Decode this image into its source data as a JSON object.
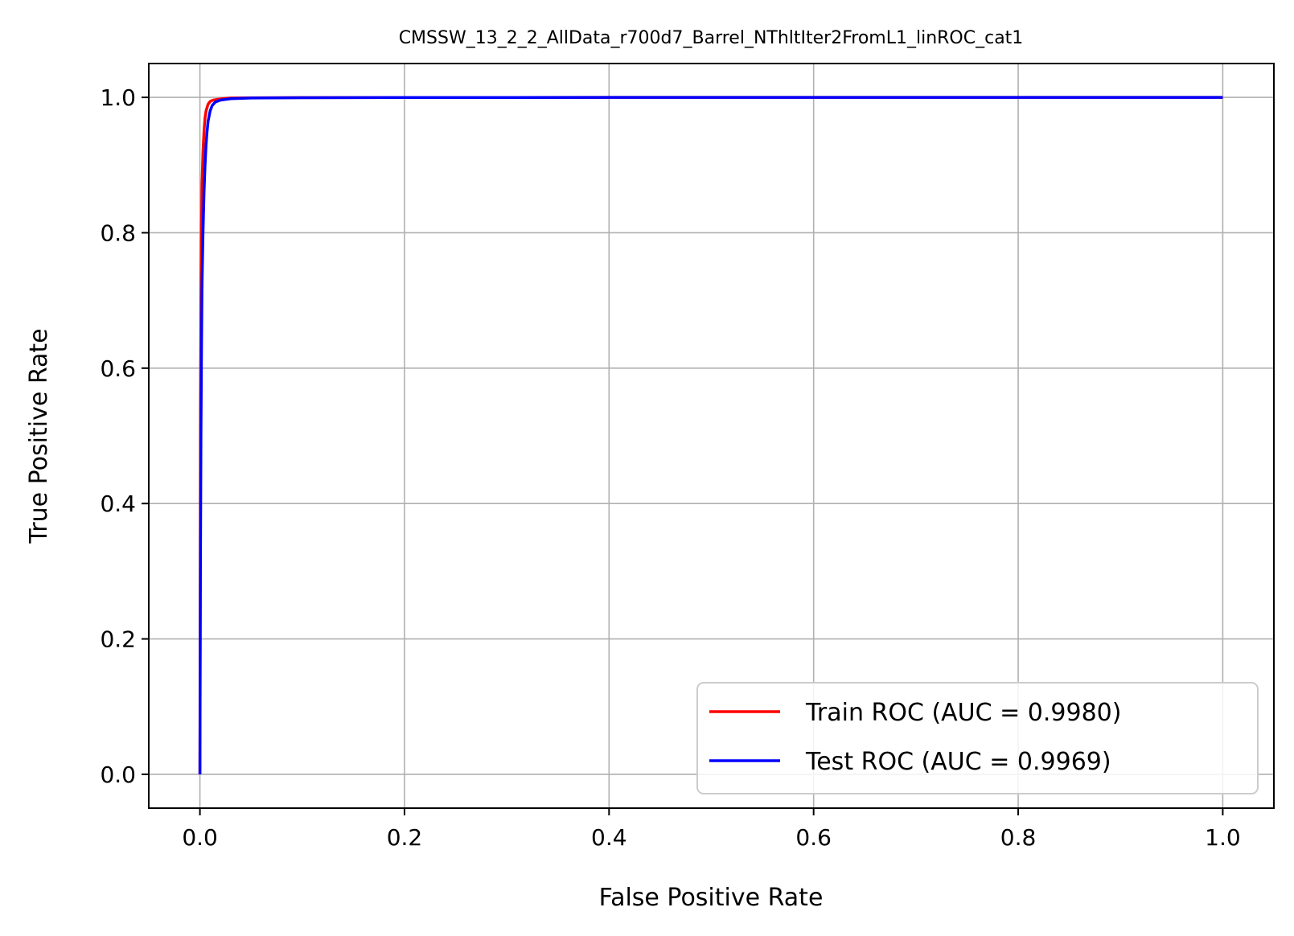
{
  "chart_data": {
    "type": "line",
    "title": "CMSSW_13_2_2_AllData_r700d7_Barrel_NThltIter2FromL1_linROC_cat1",
    "xlabel": "False Positive Rate",
    "ylabel": "True Positive Rate",
    "xlim": [
      -0.05,
      1.05
    ],
    "ylim": [
      -0.05,
      1.05
    ],
    "xticks": [
      0.0,
      0.2,
      0.4,
      0.6,
      0.8,
      1.0
    ],
    "yticks": [
      0.0,
      0.2,
      0.4,
      0.6,
      0.8,
      1.0
    ],
    "xtick_labels": [
      "0.0",
      "0.2",
      "0.4",
      "0.6",
      "0.8",
      "1.0"
    ],
    "ytick_labels": [
      "0.0",
      "0.2",
      "0.4",
      "0.6",
      "0.8",
      "1.0"
    ],
    "grid": true,
    "legend_position": "lower-right",
    "series": [
      {
        "name": "Train ROC (AUC = 0.9980)",
        "color": "#ff0000",
        "x": [
          0.0,
          0.0003,
          0.0006,
          0.001,
          0.0015,
          0.002,
          0.003,
          0.004,
          0.005,
          0.006,
          0.008,
          0.01,
          0.013,
          0.017,
          0.022,
          0.03,
          0.05,
          0.1,
          0.2,
          0.4,
          0.6,
          0.8,
          1.0
        ],
        "y": [
          0.0,
          0.3,
          0.55,
          0.7,
          0.8,
          0.87,
          0.92,
          0.95,
          0.97,
          0.98,
          0.99,
          0.994,
          0.996,
          0.997,
          0.998,
          0.999,
          0.9993,
          0.9996,
          0.9998,
          0.9999,
          1.0,
          1.0,
          1.0
        ]
      },
      {
        "name": "Test ROC (AUC = 0.9969)",
        "color": "#0000ff",
        "x": [
          0.0,
          0.0005,
          0.001,
          0.0015,
          0.002,
          0.003,
          0.004,
          0.005,
          0.006,
          0.007,
          0.008,
          0.01,
          0.012,
          0.015,
          0.02,
          0.025,
          0.03,
          0.05,
          0.1,
          0.2,
          0.4,
          0.6,
          0.8,
          1.0
        ],
        "y": [
          0.0,
          0.3,
          0.5,
          0.62,
          0.72,
          0.8,
          0.86,
          0.9,
          0.93,
          0.95,
          0.965,
          0.98,
          0.988,
          0.993,
          0.996,
          0.997,
          0.998,
          0.999,
          0.9995,
          0.9998,
          0.9999,
          1.0,
          1.0,
          1.0
        ]
      }
    ]
  }
}
